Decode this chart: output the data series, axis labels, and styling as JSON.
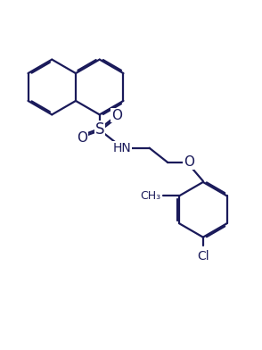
{
  "background_color": "#ffffff",
  "line_color": "#1a1a5a",
  "line_width": 1.6,
  "dbo": 0.055,
  "figsize": [
    2.94,
    3.92
  ],
  "dpi": 100,
  "xlim": [
    0,
    10
  ],
  "ylim": [
    0,
    13.3
  ]
}
